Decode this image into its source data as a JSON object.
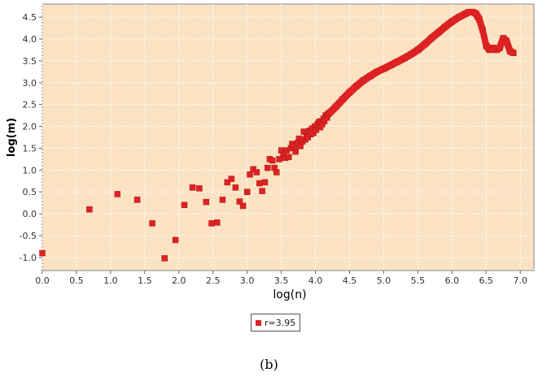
{
  "chart_data": {
    "type": "scatter",
    "title": "",
    "xlabel": "log(n)",
    "ylabel": "log(m)",
    "xlim": [
      0.0,
      7.2
    ],
    "ylim": [
      -1.3,
      4.8
    ],
    "xticks": [
      "0.0",
      "0.5",
      "1.0",
      "1.5",
      "2.0",
      "2.5",
      "3.0",
      "3.5",
      "4.0",
      "4.5",
      "5.0",
      "5.5",
      "6.0",
      "6.5",
      "7.0"
    ],
    "yticks": [
      "-1.0",
      "-0.5",
      "0.0",
      "0.5",
      "1.0",
      "1.5",
      "2.0",
      "2.5",
      "3.0",
      "3.5",
      "4.0",
      "4.5"
    ],
    "grid": true,
    "legend_position": "bottom-center",
    "colors": {
      "background": "#fbe2c2",
      "marker": "#dd2222",
      "grid": "#ffffff"
    },
    "series": [
      {
        "name": "r=3.95",
        "x": [
          0.0,
          0.69,
          1.1,
          1.39,
          1.61,
          1.79,
          1.95,
          2.08,
          2.2,
          2.3,
          2.4,
          2.48,
          2.56,
          2.64,
          2.71,
          2.77,
          2.83,
          2.89,
          2.94,
          3.0,
          3.04,
          3.09,
          3.14,
          3.18,
          3.22,
          3.26,
          3.3,
          3.33,
          3.37,
          3.4,
          3.43,
          3.47,
          3.5,
          3.53,
          3.56,
          3.58,
          3.61,
          3.64,
          3.66,
          3.69,
          3.71,
          3.74,
          3.76,
          3.78,
          3.81,
          3.83,
          3.85,
          3.87,
          3.89,
          3.91,
          3.93,
          3.95,
          3.97,
          3.99,
          4.01,
          4.03,
          4.05,
          4.07,
          4.08,
          4.1,
          4.12,
          4.13,
          4.15,
          4.17,
          4.18,
          4.2,
          4.3,
          4.4,
          4.5,
          4.6,
          4.7,
          4.8,
          4.9,
          5.0,
          5.1,
          5.2,
          5.3,
          5.4,
          5.5,
          5.6,
          5.7,
          5.8,
          5.9,
          6.0,
          6.1,
          6.2,
          6.25,
          6.3,
          6.35,
          6.4,
          6.45,
          6.5,
          6.55,
          6.6,
          6.65,
          6.7,
          6.75,
          6.8,
          6.85,
          6.9
        ],
        "y": [
          -0.9,
          0.1,
          0.45,
          0.32,
          -0.22,
          -1.02,
          -0.6,
          0.2,
          0.6,
          0.58,
          0.27,
          -0.22,
          -0.2,
          0.32,
          0.72,
          0.8,
          0.6,
          0.28,
          0.18,
          0.5,
          0.9,
          1.02,
          0.95,
          0.7,
          0.52,
          0.72,
          1.05,
          1.25,
          1.22,
          1.05,
          0.95,
          1.25,
          1.45,
          1.35,
          1.28,
          1.45,
          1.3,
          1.5,
          1.6,
          1.55,
          1.42,
          1.62,
          1.72,
          1.55,
          1.65,
          1.88,
          1.7,
          1.8,
          1.75,
          1.9,
          1.82,
          1.95,
          1.85,
          2.0,
          1.92,
          2.05,
          2.1,
          1.98,
          2.12,
          2.05,
          2.18,
          2.12,
          2.25,
          2.2,
          2.28,
          2.3,
          2.45,
          2.62,
          2.78,
          2.92,
          3.05,
          3.15,
          3.25,
          3.32,
          3.4,
          3.48,
          3.56,
          3.65,
          3.75,
          3.88,
          4.02,
          4.15,
          4.28,
          4.4,
          4.5,
          4.58,
          4.62,
          4.62,
          4.58,
          4.45,
          4.2,
          3.85,
          3.75,
          3.8,
          3.75,
          3.8,
          4.02,
          3.95,
          3.72,
          3.68
        ]
      }
    ]
  },
  "caption": "(b)"
}
